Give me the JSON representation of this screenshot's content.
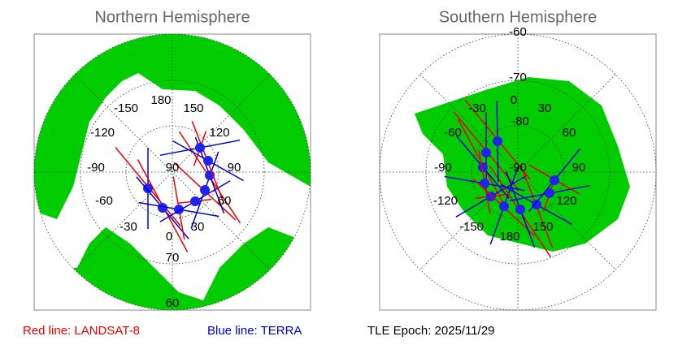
{
  "north": {
    "title": "Northern Hemisphere",
    "longitudes": [
      "180",
      "150",
      "-150",
      "120",
      "-120",
      "90",
      "-90",
      "60",
      "-60",
      "30",
      "-30",
      "0"
    ],
    "latitudes": [
      "90",
      "70",
      "60"
    ]
  },
  "south": {
    "title": "Southern Hemisphere",
    "longitudes": [
      "0",
      "30",
      "-30",
      "60",
      "-60",
      "90",
      "-90",
      "120",
      "-120",
      "150",
      "-150",
      "180"
    ],
    "latitudes": [
      "-60",
      "-70",
      "-80",
      "-90"
    ]
  },
  "legend": {
    "red": "Red line: LANDSAT-8",
    "blue": "Blue line: TERRA",
    "epoch": "TLE Epoch: 2025/11/29"
  }
}
